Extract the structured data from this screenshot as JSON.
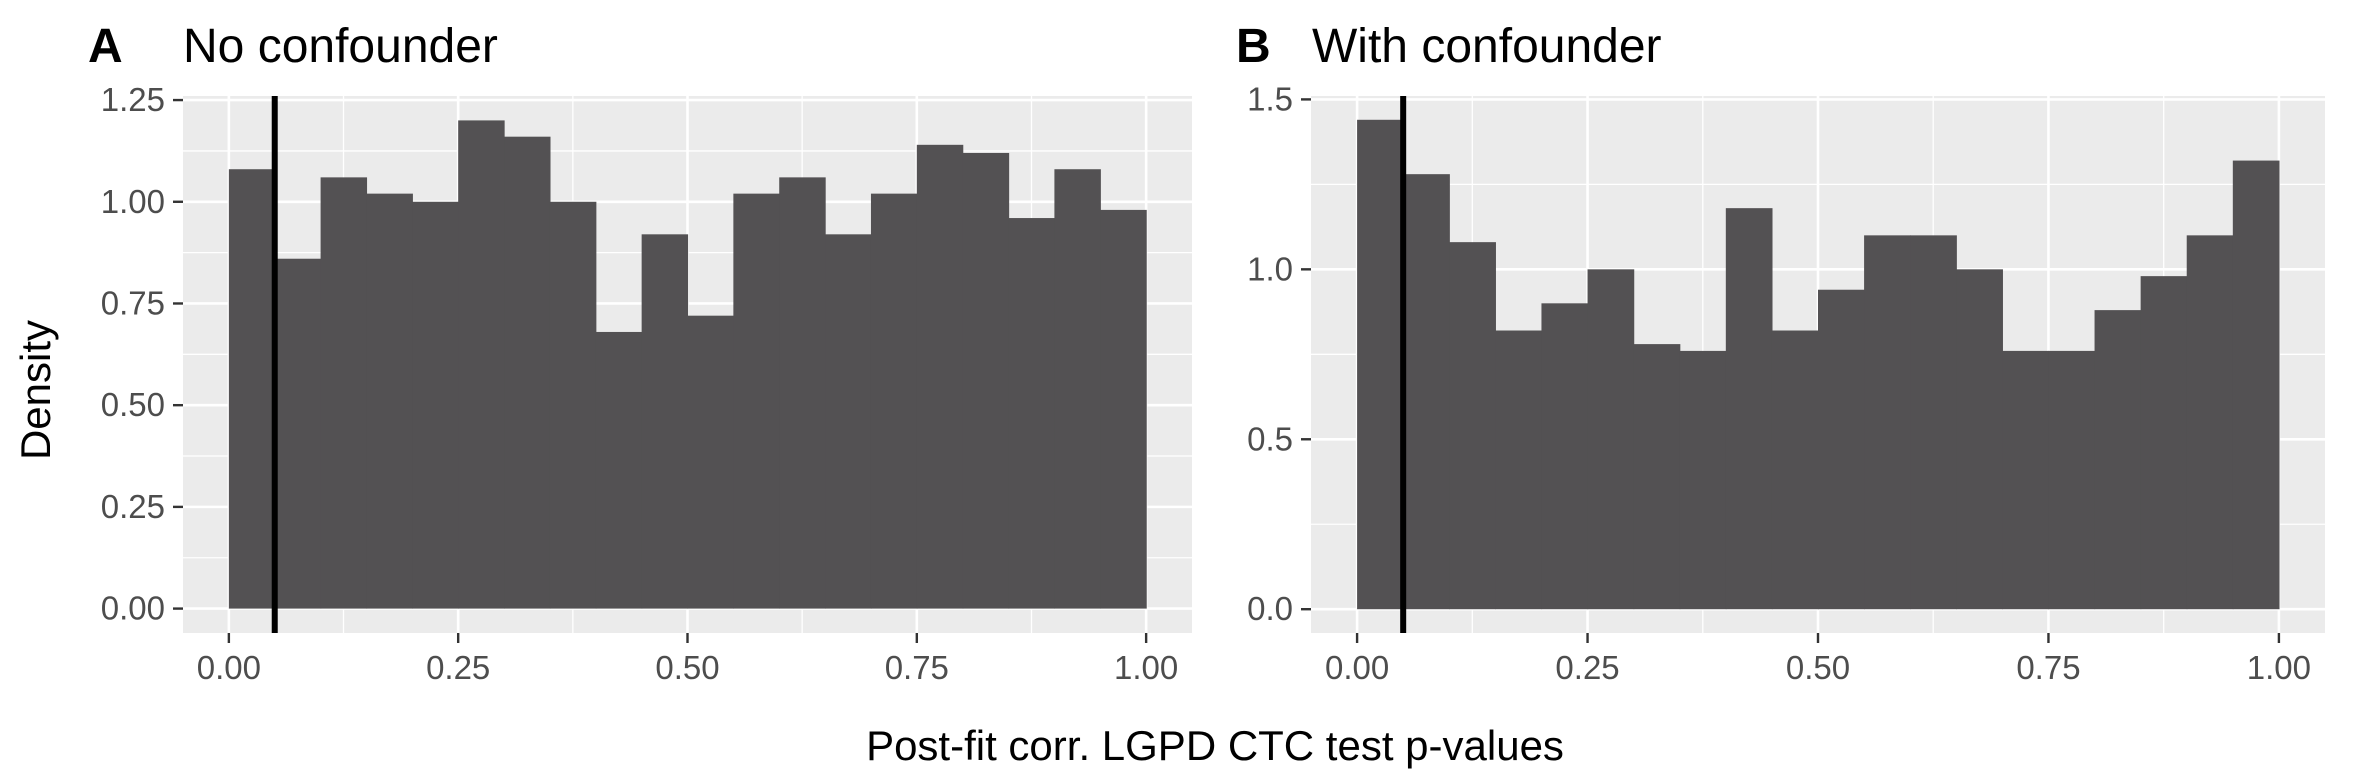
{
  "figure": {
    "ylabel": "Density",
    "xlabel": "Post-fit corr. LGPD CTC test p-values"
  },
  "chart_data": [
    {
      "type": "bar",
      "tag": "A",
      "title": "No confounder",
      "bin_width": 0.05,
      "bin_starts": [
        0.0,
        0.05,
        0.1,
        0.15,
        0.2,
        0.25,
        0.3,
        0.35,
        0.4,
        0.45,
        0.5,
        0.55,
        0.6,
        0.65,
        0.7,
        0.75,
        0.8,
        0.85,
        0.9,
        0.95
      ],
      "values": [
        1.08,
        0.86,
        1.06,
        1.02,
        1.0,
        1.2,
        1.16,
        1.0,
        0.68,
        0.92,
        0.72,
        1.02,
        1.06,
        0.92,
        1.02,
        1.14,
        1.12,
        0.96,
        1.08,
        0.98
      ],
      "vline": 0.05,
      "xlim": [
        -0.05,
        1.05
      ],
      "ylim": [
        -0.06,
        1.26
      ],
      "xticks": [
        0.0,
        0.25,
        0.5,
        0.75,
        1.0
      ],
      "xtick_labels": [
        "0.00",
        "0.25",
        "0.50",
        "0.75",
        "1.00"
      ],
      "yticks": [
        0.0,
        0.25,
        0.5,
        0.75,
        1.0,
        1.25
      ],
      "ytick_labels": [
        "0.00",
        "0.25",
        "0.50",
        "0.75",
        "1.00",
        "1.25"
      ],
      "fill_color": "#535153",
      "panel_bg": "#ebebeb",
      "grid_color": "#ffffff"
    },
    {
      "type": "bar",
      "tag": "B",
      "title": "With confounder",
      "bin_width": 0.05,
      "bin_starts": [
        0.0,
        0.05,
        0.1,
        0.15,
        0.2,
        0.25,
        0.3,
        0.35,
        0.4,
        0.45,
        0.5,
        0.55,
        0.6,
        0.65,
        0.7,
        0.75,
        0.8,
        0.85,
        0.9,
        0.95
      ],
      "values": [
        1.44,
        1.28,
        1.08,
        0.82,
        0.9,
        1.0,
        0.78,
        0.76,
        1.18,
        0.82,
        0.94,
        1.1,
        1.1,
        1.0,
        0.76,
        0.76,
        0.88,
        0.98,
        1.1,
        1.32
      ],
      "vline": 0.05,
      "xlim": [
        -0.05,
        1.05
      ],
      "ylim": [
        -0.07,
        1.51
      ],
      "xticks": [
        0.0,
        0.25,
        0.5,
        0.75,
        1.0
      ],
      "xtick_labels": [
        "0.00",
        "0.25",
        "0.50",
        "0.75",
        "1.00"
      ],
      "yticks": [
        0.0,
        0.5,
        1.0,
        1.5
      ],
      "ytick_labels": [
        "0.0",
        "0.5",
        "1.0",
        "1.5"
      ],
      "fill_color": "#535153",
      "panel_bg": "#ebebeb",
      "grid_color": "#ffffff"
    }
  ]
}
